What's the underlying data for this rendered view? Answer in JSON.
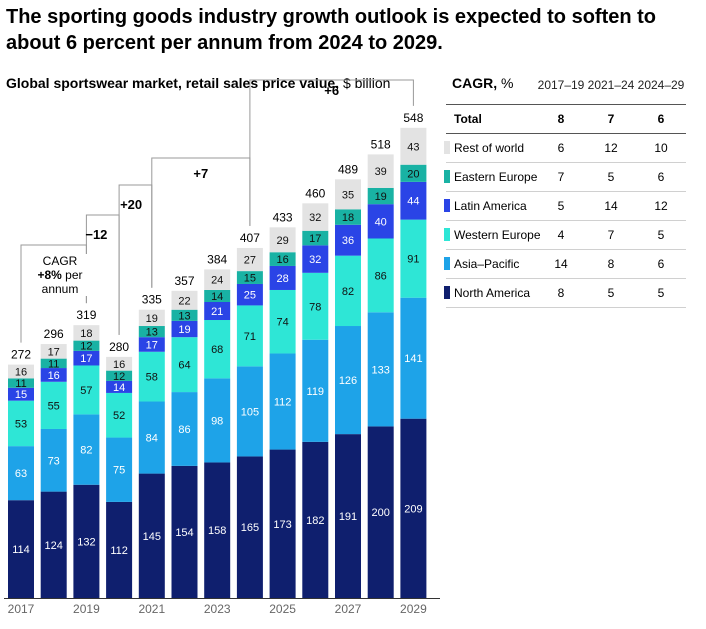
{
  "title": "The sporting goods industry growth outlook is expected to soften to about 6 percent per annum from 2024 to 2029.",
  "subtitle": {
    "bold": "Global sportswear market, retail sales price value,",
    "unit": "$ billion"
  },
  "colors": {
    "North America": "#0f1f6e",
    "Asia–Pacific": "#1ea3e8",
    "Western Europe": "#2ee6d6",
    "Latin America": "#2a44e6",
    "Eastern Europe": "#19b2a4",
    "Rest of world": "#e3e3e3"
  },
  "chart_data": {
    "type": "bar",
    "stacked": true,
    "title": "Global sportswear market, retail sales price value, $ billion",
    "categories": [
      "2017",
      "2018",
      "2019",
      "2020",
      "2021",
      "2022",
      "2023",
      "2024",
      "2025",
      "2026",
      "2027",
      "2028",
      "2029"
    ],
    "xtick_labels": [
      "2017",
      "",
      "2019",
      "",
      "2021",
      "",
      "2023",
      "",
      "2025",
      "",
      "2027",
      "",
      "2029"
    ],
    "series": [
      {
        "name": "North America",
        "values": [
          114,
          124,
          132,
          112,
          145,
          154,
          158,
          165,
          173,
          182,
          191,
          200,
          209
        ]
      },
      {
        "name": "Asia–Pacific",
        "values": [
          63,
          73,
          82,
          75,
          84,
          86,
          98,
          105,
          112,
          119,
          126,
          133,
          141
        ]
      },
      {
        "name": "Western Europe",
        "values": [
          53,
          55,
          57,
          52,
          58,
          64,
          68,
          71,
          74,
          78,
          82,
          86,
          91
        ]
      },
      {
        "name": "Latin America",
        "values": [
          15,
          16,
          17,
          14,
          17,
          19,
          21,
          25,
          28,
          32,
          36,
          40,
          44
        ]
      },
      {
        "name": "Eastern Europe",
        "values": [
          11,
          11,
          12,
          12,
          13,
          13,
          14,
          15,
          16,
          17,
          18,
          19,
          20
        ]
      },
      {
        "name": "Rest of world",
        "values": [
          16,
          17,
          18,
          16,
          19,
          22,
          24,
          27,
          29,
          32,
          35,
          39,
          43
        ]
      }
    ],
    "totals": [
      272,
      296,
      319,
      280,
      335,
      357,
      384,
      407,
      433,
      460,
      489,
      518,
      548
    ],
    "annotations": [
      {
        "text": "CAGR",
        "from": "2017",
        "to": "2019"
      },
      {
        "text": "−12",
        "from": "2019",
        "to": "2020"
      },
      {
        "text": "+20",
        "from": "2020",
        "to": "2021"
      },
      {
        "text": "+7",
        "from": "2021",
        "to": "2024"
      },
      {
        "text": "+6",
        "from": "2024",
        "to": "2029"
      }
    ],
    "cagr_note": {
      "line1": "CAGR",
      "bold": "+8%",
      "rest": " per annum"
    }
  },
  "cagr_table": {
    "label_bold": "CAGR,",
    "label_unit": " %",
    "columns": [
      "2017–19",
      "2021–24",
      "2024–29"
    ],
    "rows": [
      {
        "name": "Total",
        "values": [
          "8",
          "7",
          "6"
        ],
        "total": true
      },
      {
        "name": "Rest of world",
        "values": [
          "6",
          "12",
          "10"
        ]
      },
      {
        "name": "Eastern Europe",
        "values": [
          "7",
          "5",
          "6"
        ]
      },
      {
        "name": "Latin America",
        "values": [
          "5",
          "14",
          "12"
        ]
      },
      {
        "name": "Western Europe",
        "values": [
          "4",
          "7",
          "5"
        ]
      },
      {
        "name": "Asia–Pacific",
        "values": [
          "14",
          "8",
          "6"
        ]
      },
      {
        "name": "North America",
        "values": [
          "8",
          "5",
          "5"
        ]
      }
    ]
  }
}
